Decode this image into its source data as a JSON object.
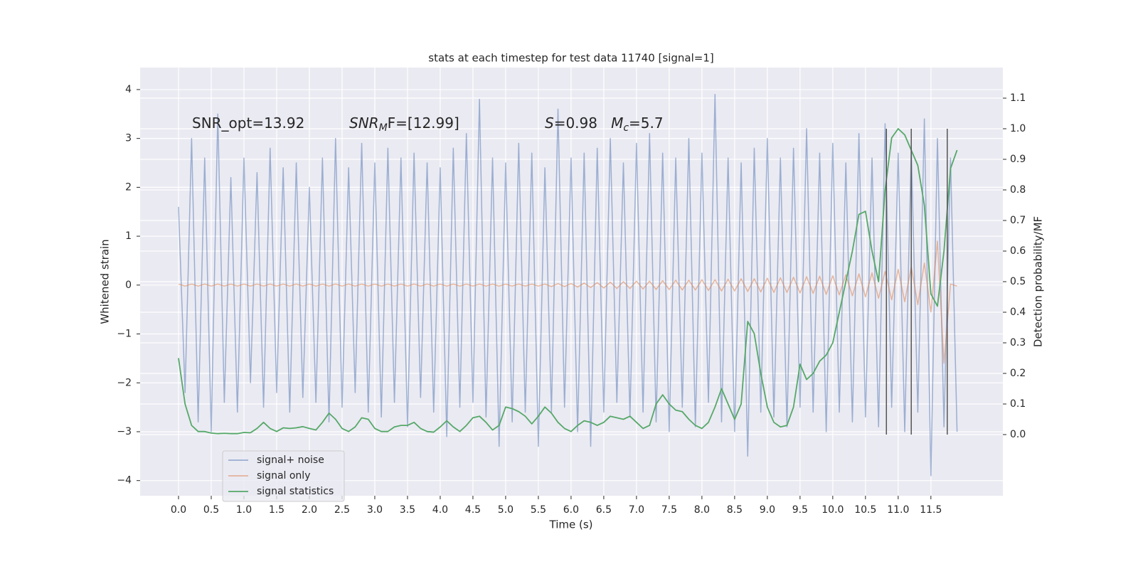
{
  "chart_data": {
    "type": "line",
    "title": "stats at each timestep for test data 11740 [signal=1]",
    "xlabel": "Time (s)",
    "ylabel": "Whitened strain",
    "y2label": "Detection probability/MF",
    "x": [
      0.0,
      0.1,
      0.2,
      0.3,
      0.4,
      0.5,
      0.6,
      0.7,
      0.8,
      0.9,
      1.0,
      1.1,
      1.2,
      1.3,
      1.4,
      1.5,
      1.6,
      1.7,
      1.8,
      1.9,
      2.0,
      2.1,
      2.2,
      2.3,
      2.4,
      2.5,
      2.6,
      2.7,
      2.8,
      2.9,
      3.0,
      3.1,
      3.2,
      3.3,
      3.4,
      3.5,
      3.6,
      3.7,
      3.8,
      3.9,
      4.0,
      4.1,
      4.2,
      4.3,
      4.4,
      4.5,
      4.6,
      4.7,
      4.8,
      4.9,
      5.0,
      5.1,
      5.2,
      5.3,
      5.4,
      5.5,
      5.6,
      5.7,
      5.8,
      5.9,
      6.0,
      6.1,
      6.2,
      6.3,
      6.4,
      6.5,
      6.6,
      6.7,
      6.8,
      6.9,
      7.0,
      7.1,
      7.2,
      7.3,
      7.4,
      7.5,
      7.6,
      7.7,
      7.8,
      7.9,
      8.0,
      8.1,
      8.2,
      8.3,
      8.4,
      8.5,
      8.6,
      8.7,
      8.8,
      8.9,
      9.0,
      9.1,
      9.2,
      9.3,
      9.4,
      9.5,
      9.6,
      9.7,
      9.8,
      9.9,
      10.0,
      10.1,
      10.2,
      10.3,
      10.4,
      10.5,
      10.6,
      10.7,
      10.8,
      10.9,
      11.0,
      11.1,
      11.2,
      11.3,
      11.4,
      11.5,
      11.6,
      11.7,
      11.8,
      11.9
    ],
    "series": [
      {
        "name": "signal+ noise",
        "color": "#4c72b0",
        "opacity": 0.5,
        "axis": "y",
        "values": [
          1.6,
          -2.2,
          3.0,
          -2.8,
          2.6,
          -3.0,
          3.5,
          -2.4,
          2.2,
          -2.6,
          2.6,
          -2.0,
          2.3,
          -2.5,
          2.8,
          -2.2,
          2.4,
          -2.6,
          2.5,
          -2.3,
          2.0,
          -2.4,
          2.6,
          -2.8,
          3.0,
          -2.5,
          2.4,
          -2.2,
          2.9,
          -2.6,
          2.5,
          -2.7,
          2.8,
          -2.4,
          2.6,
          -2.9,
          2.7,
          -2.3,
          2.5,
          -2.6,
          2.4,
          -3.1,
          2.8,
          -2.5,
          3.1,
          -2.4,
          3.8,
          -2.7,
          2.6,
          -3.3,
          2.5,
          -2.8,
          2.9,
          -2.6,
          2.7,
          -3.3,
          2.4,
          -2.6,
          3.6,
          -2.5,
          2.6,
          -3.0,
          2.7,
          -3.3,
          2.8,
          -2.6,
          3.0,
          -2.4,
          2.5,
          -2.7,
          2.9,
          -2.6,
          3.1,
          -2.8,
          2.7,
          -3.0,
          2.6,
          -2.5,
          3.0,
          -2.9,
          2.7,
          -2.4,
          3.9,
          -2.8,
          2.6,
          -3.0,
          2.5,
          -3.5,
          2.8,
          -2.6,
          3.0,
          -2.7,
          2.6,
          -2.9,
          2.8,
          -2.5,
          3.2,
          -2.6,
          2.7,
          -3.0,
          2.9,
          -2.6,
          2.5,
          -2.8,
          3.1,
          -2.7,
          2.6,
          -2.9,
          3.3,
          -2.5,
          2.7,
          -3.0,
          2.8,
          -2.6,
          3.4,
          -3.9,
          3.0,
          -2.9,
          2.6,
          -3.0
        ]
      },
      {
        "name": "signal only",
        "color": "#dd8452",
        "opacity": 0.55,
        "axis": "y",
        "values": [
          0.02,
          -0.02,
          0.02,
          -0.02,
          0.02,
          -0.02,
          0.02,
          -0.02,
          0.02,
          -0.02,
          0.02,
          -0.02,
          0.02,
          -0.02,
          0.02,
          -0.02,
          0.02,
          -0.02,
          0.02,
          -0.02,
          0.02,
          -0.02,
          0.02,
          -0.02,
          0.02,
          -0.02,
          0.02,
          -0.02,
          0.02,
          -0.02,
          0.02,
          -0.02,
          0.02,
          -0.02,
          0.02,
          -0.02,
          0.02,
          -0.02,
          0.02,
          -0.02,
          0.02,
          -0.02,
          0.02,
          -0.02,
          0.02,
          -0.02,
          0.02,
          -0.02,
          0.02,
          -0.02,
          0.02,
          -0.02,
          0.02,
          -0.02,
          0.02,
          -0.02,
          0.02,
          -0.03,
          0.03,
          -0.03,
          0.03,
          -0.04,
          0.04,
          -0.05,
          0.05,
          -0.06,
          0.06,
          -0.07,
          0.07,
          -0.07,
          0.08,
          -0.08,
          0.08,
          -0.09,
          0.09,
          -0.09,
          0.1,
          -0.1,
          0.1,
          -0.1,
          0.11,
          -0.11,
          0.11,
          -0.12,
          0.12,
          -0.12,
          0.13,
          -0.13,
          0.13,
          -0.14,
          0.14,
          -0.15,
          0.15,
          -0.15,
          0.16,
          -0.16,
          0.17,
          -0.17,
          0.18,
          -0.19,
          0.19,
          -0.2,
          0.21,
          -0.22,
          0.23,
          -0.24,
          0.25,
          -0.27,
          0.28,
          -0.3,
          0.32,
          -0.34,
          0.37,
          -0.4,
          0.45,
          -0.55,
          0.9,
          -1.6,
          0.02,
          -0.02
        ]
      },
      {
        "name": "signal statistics",
        "color": "#55a868",
        "opacity": 1,
        "axis": "y2",
        "values": [
          0.25,
          0.1,
          0.03,
          0.01,
          0.01,
          0.005,
          0.003,
          0.004,
          0.003,
          0.003,
          0.007,
          0.006,
          0.02,
          0.04,
          0.02,
          0.01,
          0.022,
          0.02,
          0.022,
          0.026,
          0.02,
          0.015,
          0.04,
          0.07,
          0.05,
          0.02,
          0.01,
          0.025,
          0.055,
          0.05,
          0.02,
          0.01,
          0.01,
          0.025,
          0.03,
          0.03,
          0.04,
          0.02,
          0.01,
          0.008,
          0.025,
          0.045,
          0.025,
          0.01,
          0.03,
          0.055,
          0.06,
          0.04,
          0.015,
          0.03,
          0.09,
          0.085,
          0.075,
          0.06,
          0.035,
          0.06,
          0.09,
          0.07,
          0.04,
          0.02,
          0.01,
          0.03,
          0.045,
          0.04,
          0.03,
          0.04,
          0.06,
          0.055,
          0.05,
          0.06,
          0.04,
          0.02,
          0.03,
          0.1,
          0.13,
          0.1,
          0.08,
          0.075,
          0.05,
          0.03,
          0.02,
          0.04,
          0.09,
          0.15,
          0.1,
          0.05,
          0.1,
          0.37,
          0.33,
          0.2,
          0.09,
          0.04,
          0.025,
          0.03,
          0.09,
          0.23,
          0.18,
          0.2,
          0.24,
          0.26,
          0.3,
          0.4,
          0.5,
          0.6,
          0.72,
          0.73,
          0.6,
          0.5,
          0.8,
          0.97,
          1.0,
          0.98,
          0.93,
          0.88,
          0.75,
          0.46,
          0.42,
          0.6,
          0.87,
          0.93
        ]
      }
    ],
    "vlines": {
      "x": [
        10.82,
        11.2,
        11.75
      ],
      "y2range": [
        0,
        1
      ],
      "color": "#555555"
    },
    "annotations": [
      {
        "segments": [
          {
            "text": "SNR_opt=13.92"
          }
        ]
      },
      {
        "segments": [
          {
            "text": "SNR",
            "italic": true
          },
          {
            "text": "M",
            "italic": true,
            "sub": true
          },
          {
            "text": "F=[12.99]"
          }
        ]
      },
      {
        "segments": [
          {
            "text": "S",
            "italic": true
          },
          {
            "text": "=0.98   "
          },
          {
            "text": "M",
            "italic": true
          },
          {
            "text": "c",
            "italic": true,
            "sub": true
          },
          {
            "text": "=5.7"
          }
        ]
      }
    ],
    "xlim": [
      -0.587,
      12.6
    ],
    "ylim": [
      -4.31,
      4.45
    ],
    "y2lim": [
      -0.2,
      1.2
    ],
    "xticks": [
      {
        "value": 0,
        "label": "0.0"
      },
      0.5,
      {
        "value": 1,
        "label": "1.0"
      },
      1.5,
      {
        "value": 2,
        "label": "2.0"
      },
      2.5,
      {
        "value": 3,
        "label": "3.0"
      },
      3.5,
      {
        "value": 4,
        "label": "4.0"
      },
      4.5,
      {
        "value": 5,
        "label": "5.0"
      },
      5.5,
      {
        "value": 6,
        "label": "6.0"
      },
      6.5,
      {
        "value": 7,
        "label": "7.0"
      },
      7.5,
      {
        "value": 8,
        "label": "8.0"
      },
      8.5,
      {
        "value": 9,
        "label": "9.0"
      },
      9.5,
      {
        "value": 10,
        "label": "10.0"
      },
      10.5,
      {
        "value": 11,
        "label": "11.0"
      },
      11.5
    ],
    "yticks": [
      {
        "value": -4,
        "label": "−4"
      },
      {
        "value": -3,
        "label": "−3"
      },
      {
        "value": -2,
        "label": "−2"
      },
      {
        "value": -1,
        "label": "−1"
      },
      0,
      1,
      2,
      3,
      4
    ],
    "y2ticks": [
      {
        "value": 0,
        "label": "0.0"
      },
      0.1,
      0.2,
      0.3,
      0.4,
      0.5,
      0.6,
      0.7,
      0.8,
      0.9,
      {
        "value": 1,
        "label": "1.0"
      },
      1.1
    ],
    "grid": true,
    "legend": "lower left",
    "background": "#eaeaf2"
  }
}
